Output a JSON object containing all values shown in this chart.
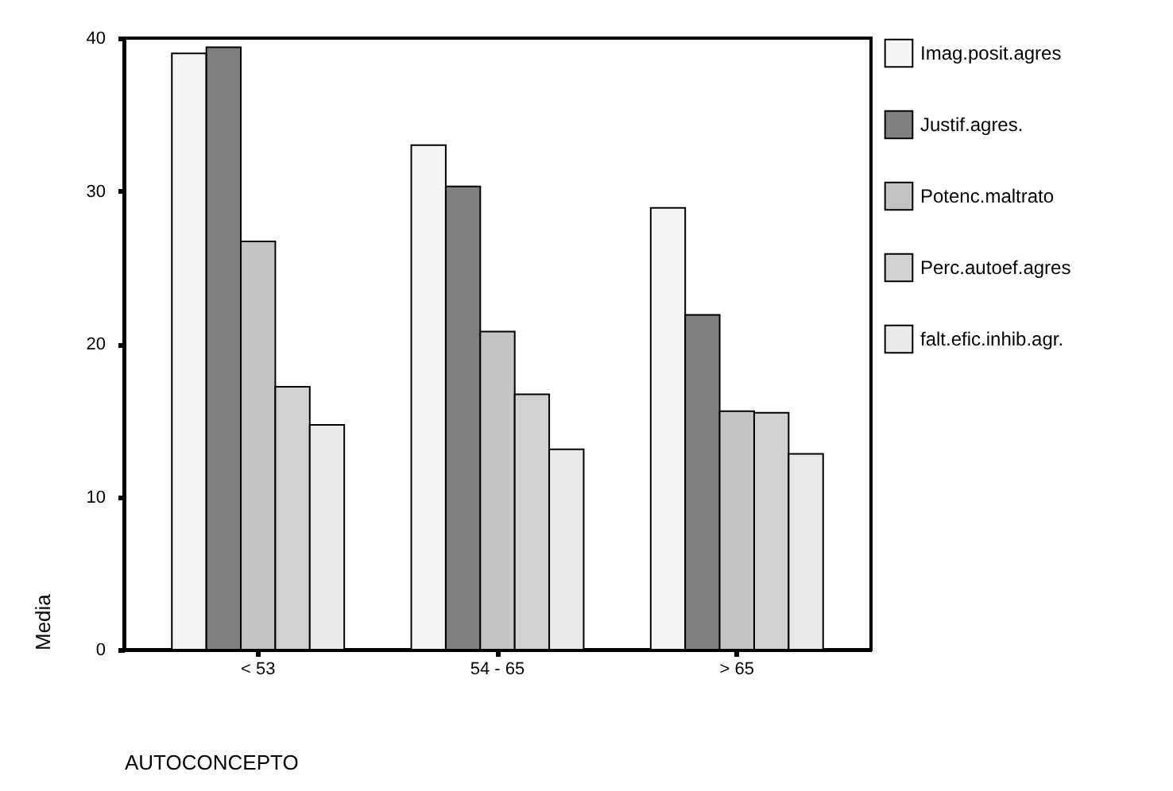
{
  "chart_data": {
    "type": "bar",
    "xlabel": "AUTOCONCEPTO",
    "ylabel": "Media",
    "categories": [
      "< 53",
      "54 - 65",
      "> 65"
    ],
    "series": [
      {
        "name": "Imag.posit.agres",
        "color": "#f4f4f4",
        "values": [
          39.0,
          33.0,
          28.9
        ]
      },
      {
        "name": "Justif.agres.",
        "color": "#808080",
        "values": [
          39.4,
          30.3,
          21.9
        ]
      },
      {
        "name": "Potenc.maltrato",
        "color": "#c4c4c4",
        "values": [
          26.7,
          20.8,
          15.6
        ]
      },
      {
        "name": "Perc.autoef.agres",
        "color": "#d0d0d0",
        "values": [
          17.2,
          16.7,
          15.5
        ]
      },
      {
        "name": "falt.efic.inhib.agr.",
        "color": "#e8e8e8",
        "values": [
          14.7,
          13.1,
          12.8
        ]
      }
    ],
    "ylim": [
      0,
      40
    ],
    "yticks": [
      0,
      10,
      20,
      30,
      40
    ],
    "grid": false,
    "legend": "right"
  }
}
